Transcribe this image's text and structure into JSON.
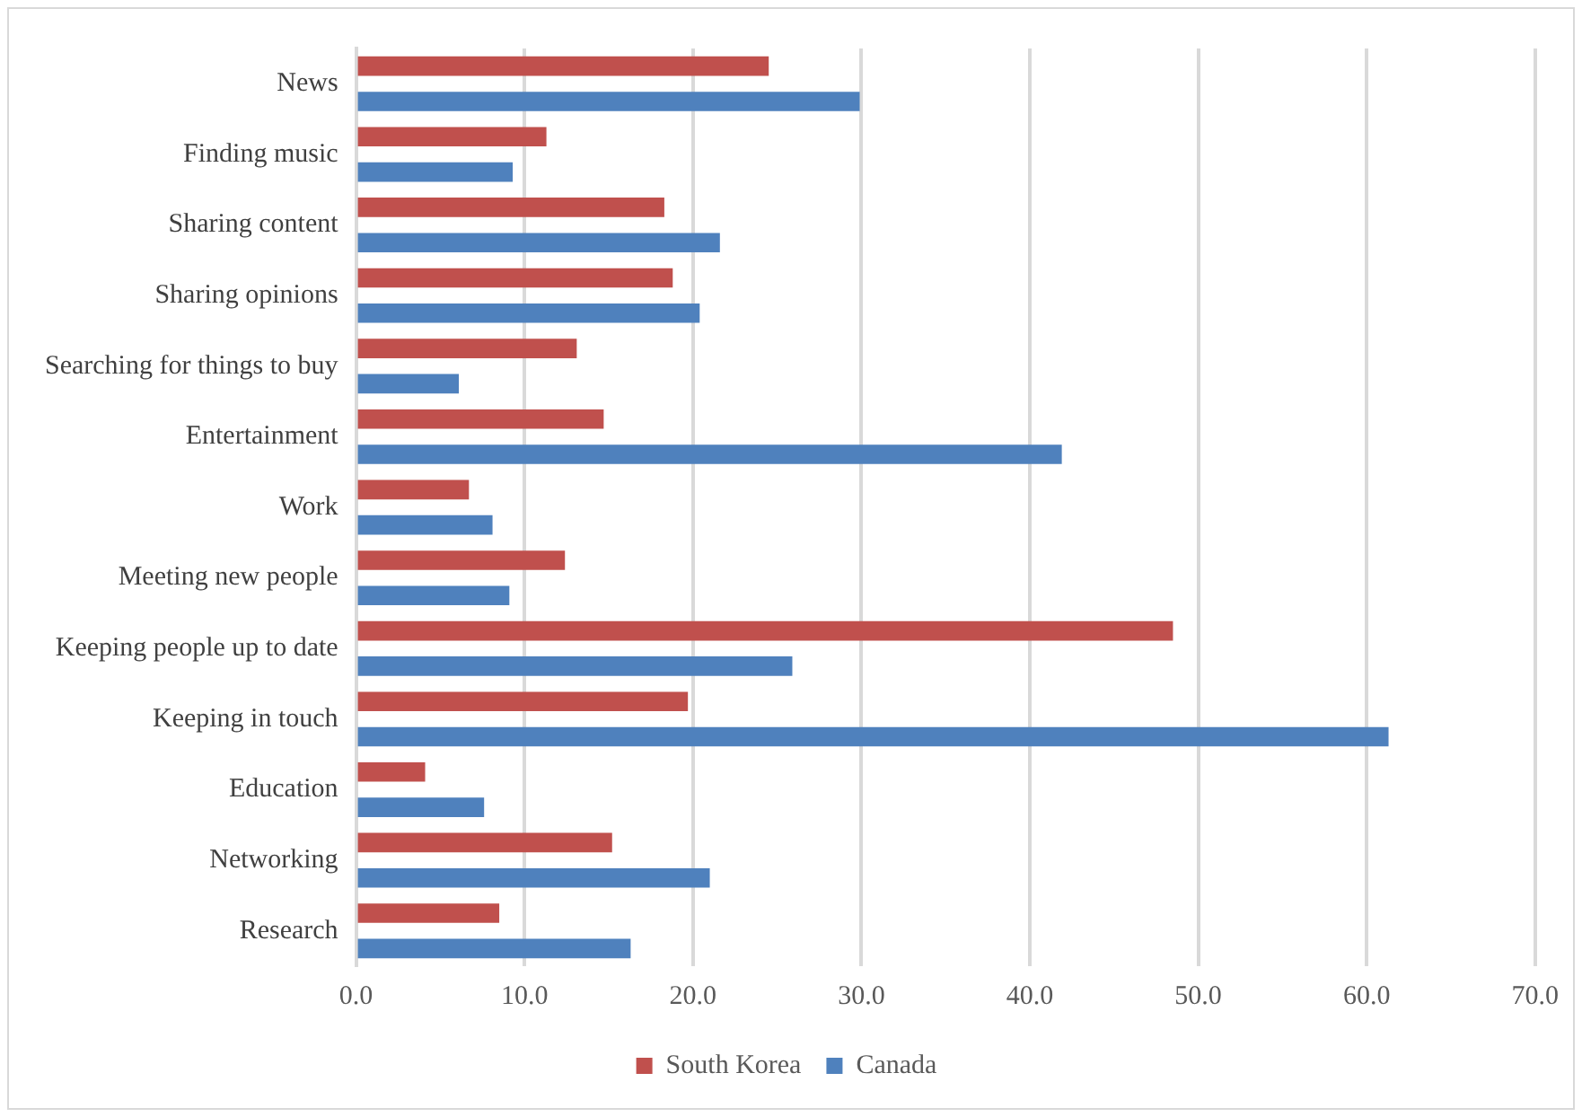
{
  "chart_data": {
    "type": "bar",
    "orientation": "horizontal",
    "categories": [
      "News",
      "Finding music",
      "Sharing content",
      "Sharing opinions",
      "Searching for things to buy",
      "Entertainment",
      "Work",
      "Meeting new people",
      "Keeping people up to date",
      "Keeping in touch",
      "Education",
      "Networking",
      "Research"
    ],
    "series": [
      {
        "name": "South Korea",
        "color": "#c0504d",
        "values": [
          24.5,
          11.3,
          18.3,
          18.8,
          13.1,
          14.7,
          6.7,
          12.4,
          48.5,
          19.7,
          4.1,
          15.2,
          8.5
        ]
      },
      {
        "name": "Canada",
        "color": "#4f81bd",
        "values": [
          29.9,
          9.3,
          21.6,
          20.4,
          6.1,
          41.9,
          8.1,
          9.1,
          25.9,
          61.3,
          7.6,
          21.0,
          16.3
        ]
      }
    ],
    "xlim": [
      0,
      70
    ],
    "xticks": [
      {
        "value": 0,
        "label": "0.0"
      },
      {
        "value": 10,
        "label": "10.0"
      },
      {
        "value": 20,
        "label": "20.0"
      },
      {
        "value": 30,
        "label": "30.0"
      },
      {
        "value": 40,
        "label": "40.0"
      },
      {
        "value": 50,
        "label": "50.0"
      },
      {
        "value": 60,
        "label": "60.0"
      },
      {
        "value": 70,
        "label": "70.0"
      }
    ],
    "grid": "x",
    "legend": "bottom"
  }
}
